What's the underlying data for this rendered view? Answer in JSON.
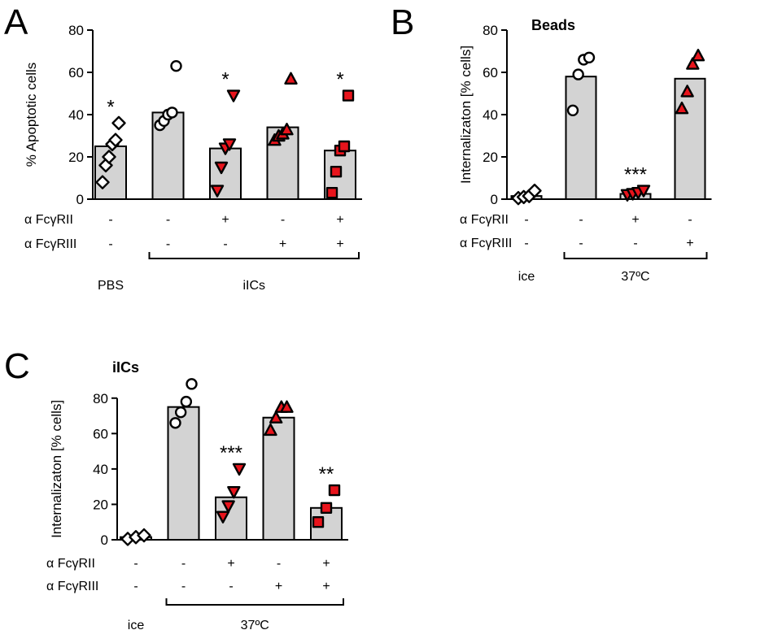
{
  "chart_data": [
    {
      "panel": "A",
      "type": "bar",
      "title": "",
      "ylabel": "% Apoptotic cells",
      "ylim": [
        0,
        80
      ],
      "yticks": [
        0,
        20,
        40,
        60,
        80
      ],
      "rows": [
        {
          "label": "α FcγRII",
          "values": [
            "-",
            "-",
            "+",
            "-",
            "+"
          ]
        },
        {
          "label": "α FcγRIII",
          "values": [
            "-",
            "-",
            "-",
            "+",
            "+"
          ]
        }
      ],
      "groups": [
        {
          "label": "PBS",
          "from": 0,
          "to": 0,
          "bracket": false
        },
        {
          "label": "iICs",
          "from": 1,
          "to": 4,
          "bracket": true
        }
      ],
      "bars": [
        {
          "value": 25,
          "marker": "diamond",
          "fill": "#ffffff",
          "points": [
            8,
            16,
            20,
            26,
            28,
            36
          ],
          "sig": "*"
        },
        {
          "value": 41,
          "marker": "circle",
          "fill": "#ffffff",
          "points": [
            35,
            37,
            40,
            41,
            63
          ],
          "sig": ""
        },
        {
          "value": 24,
          "marker": "triangle-down",
          "fill": "#e8141c",
          "points": [
            4,
            15,
            24,
            26,
            49
          ],
          "sig": "*"
        },
        {
          "value": 34,
          "marker": "triangle-up",
          "fill": "#e8141c",
          "points": [
            28,
            30,
            31,
            33,
            57
          ],
          "sig": ""
        },
        {
          "value": 23,
          "marker": "square",
          "fill": "#e8141c",
          "points": [
            3,
            13,
            23,
            25,
            49
          ],
          "sig": "*"
        }
      ]
    },
    {
      "panel": "B",
      "type": "bar",
      "title": "Beads",
      "ylabel": "Internalizaton [% cells]",
      "ylim": [
        0,
        80
      ],
      "yticks": [
        0,
        20,
        40,
        60,
        80
      ],
      "rows": [
        {
          "label": "α FcγRII",
          "values": [
            "-",
            "-",
            "+",
            "-"
          ]
        },
        {
          "label": "α FcγRIII",
          "values": [
            "-",
            "-",
            "-",
            "+"
          ]
        }
      ],
      "groups": [
        {
          "label": "ice",
          "from": 0,
          "to": 0,
          "bracket": false
        },
        {
          "label": "37ºC",
          "from": 1,
          "to": 3,
          "bracket": true
        }
      ],
      "bars": [
        {
          "value": 1.5,
          "marker": "diamond",
          "fill": "#ffffff",
          "points": [
            0.5,
            1,
            1.5,
            4
          ],
          "sig": ""
        },
        {
          "value": 58,
          "marker": "circle",
          "fill": "#ffffff",
          "points": [
            42,
            59,
            66,
            67
          ],
          "sig": ""
        },
        {
          "value": 2.5,
          "marker": "triangle-down",
          "fill": "#e8141c",
          "points": [
            2,
            2.5,
            3,
            4
          ],
          "sig": "***"
        },
        {
          "value": 57,
          "marker": "triangle-up",
          "fill": "#e8141c",
          "points": [
            43,
            51,
            64,
            68
          ],
          "sig": ""
        }
      ]
    },
    {
      "panel": "C",
      "type": "bar",
      "title": "iICs",
      "ylabel": "Internalizaton [% cells]",
      "ylim": [
        0,
        90
      ],
      "yticks": [
        0,
        20,
        40,
        60,
        80
      ],
      "rows": [
        {
          "label": "α FcγRII",
          "values": [
            "-",
            "-",
            "+",
            "-",
            "+"
          ]
        },
        {
          "label": "α FcγRIII",
          "values": [
            "-",
            "-",
            "-",
            "+",
            "+"
          ]
        }
      ],
      "groups": [
        {
          "label": "ice",
          "from": 0,
          "to": 0,
          "bracket": false
        },
        {
          "label": "37ºC",
          "from": 1,
          "to": 4,
          "bracket": true
        }
      ],
      "bars": [
        {
          "value": 1.5,
          "marker": "diamond",
          "fill": "#ffffff",
          "points": [
            0.5,
            1.5,
            2.5
          ],
          "sig": ""
        },
        {
          "value": 75,
          "marker": "circle",
          "fill": "#ffffff",
          "points": [
            66,
            72,
            78,
            88
          ],
          "sig": ""
        },
        {
          "value": 24,
          "marker": "triangle-down",
          "fill": "#e8141c",
          "points": [
            13,
            19,
            27,
            40
          ],
          "sig": "***"
        },
        {
          "value": 69,
          "marker": "triangle-up",
          "fill": "#e8141c",
          "points": [
            62,
            69,
            75,
            75
          ],
          "sig": ""
        },
        {
          "value": 18,
          "marker": "square",
          "fill": "#e8141c",
          "points": [
            10,
            18,
            28
          ],
          "sig": "**"
        }
      ]
    }
  ],
  "colors": {
    "bar": "#d3d3d3",
    "marker_red": "#e8141c"
  }
}
